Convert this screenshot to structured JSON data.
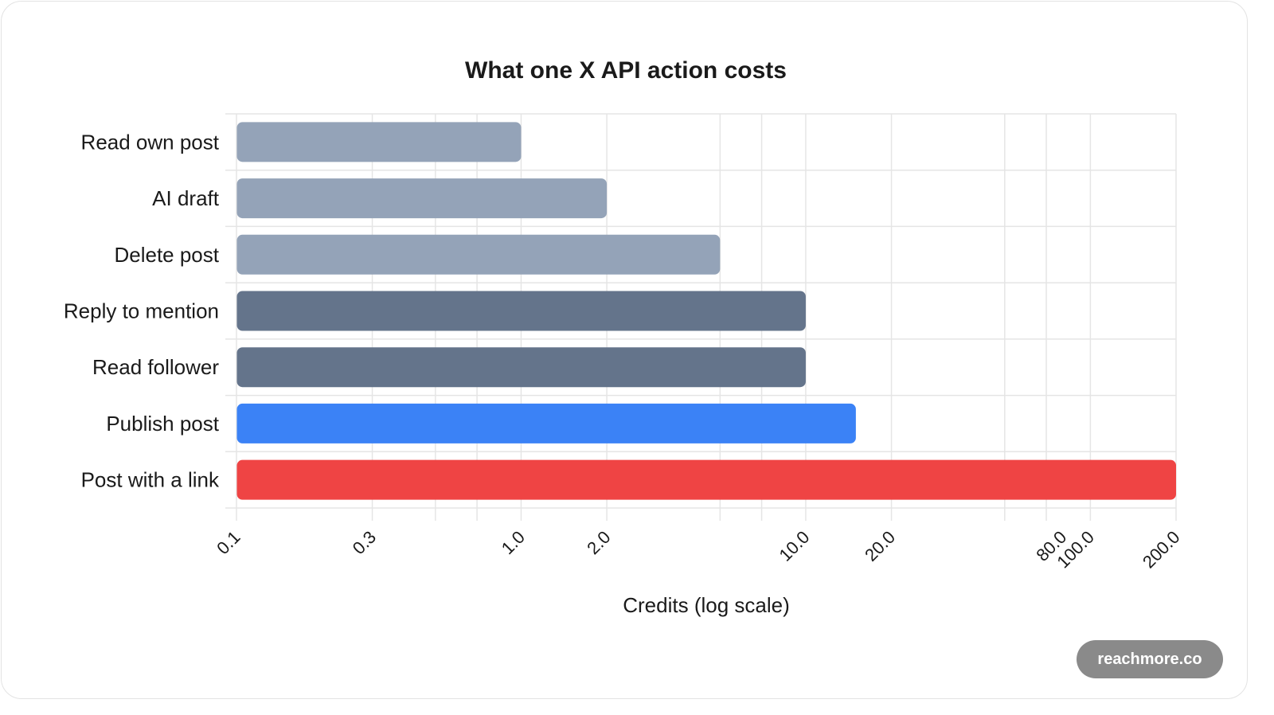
{
  "chart_data": {
    "type": "bar",
    "orientation": "horizontal",
    "title": "What one X API action costs",
    "xlabel": "Credits (log scale)",
    "ylabel": "",
    "x_scale": "log",
    "xlim": [
      0.1,
      200
    ],
    "grid": true,
    "categories": [
      "Read own post",
      "AI draft",
      "Delete post",
      "Reply to mention",
      "Read follower",
      "Publish post",
      "Post with a link"
    ],
    "values": [
      1.0,
      2.0,
      5.0,
      10.0,
      10.0,
      15.0,
      200.0
    ],
    "colors": [
      "#94a3b8",
      "#94a3b8",
      "#94a3b8",
      "#64748b",
      "#64748b",
      "#3b82f6",
      "#ef4444"
    ],
    "tick_labels": [
      "0.1",
      "0.3",
      "1.0",
      "2.0",
      "10.0",
      "20.0",
      "80.0",
      "100.0",
      "200.0"
    ]
  },
  "watermark": "reachmore.co"
}
